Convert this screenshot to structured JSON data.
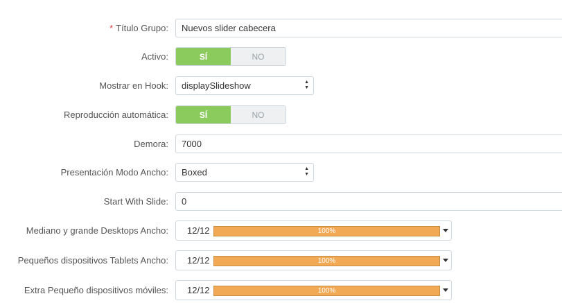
{
  "form": {
    "titulo_grupo": {
      "required_mark": "*",
      "label": "Título Grupo:",
      "value": "Nuevos slider cabecera"
    },
    "activo": {
      "label": "Activo:",
      "yes_label": "SÍ",
      "no_label": "NO",
      "selected": "SÍ"
    },
    "mostrar_en_hook": {
      "label": "Mostrar en Hook:",
      "value": "displaySlideshow"
    },
    "reproduccion_automatica": {
      "label": "Reproducción automática:",
      "yes_label": "SÍ",
      "no_label": "NO",
      "selected": "SÍ"
    },
    "demora": {
      "label": "Demora:",
      "value": "7000"
    },
    "presentacion_modo_ancho": {
      "label": "Presentación Modo Ancho:",
      "value": "Boxed"
    },
    "start_with_slide": {
      "label": "Start With Slide:",
      "value": "0"
    },
    "width_rows": [
      {
        "label": "Mediano y grande Desktops Ancho:",
        "value": "12/12",
        "percent_label": "100%",
        "fill_fraction": 1.0
      },
      {
        "label": "Pequeños dispositivos Tablets Ancho:",
        "value": "12/12",
        "percent_label": "100%",
        "fill_fraction": 1.0
      },
      {
        "label": "Extra Pequeño dispositivos móviles:",
        "value": "12/12",
        "percent_label": "100%",
        "fill_fraction": 1.0
      }
    ]
  },
  "icons": {
    "select_arrows": "updown-arrows-icon",
    "dropdown_caret": "caret-down-icon"
  },
  "colors": {
    "switch_on": "#8bcb5e",
    "switch_off": "#eef0f1",
    "progress_fill": "#f2a955",
    "required": "#e73c3c"
  }
}
